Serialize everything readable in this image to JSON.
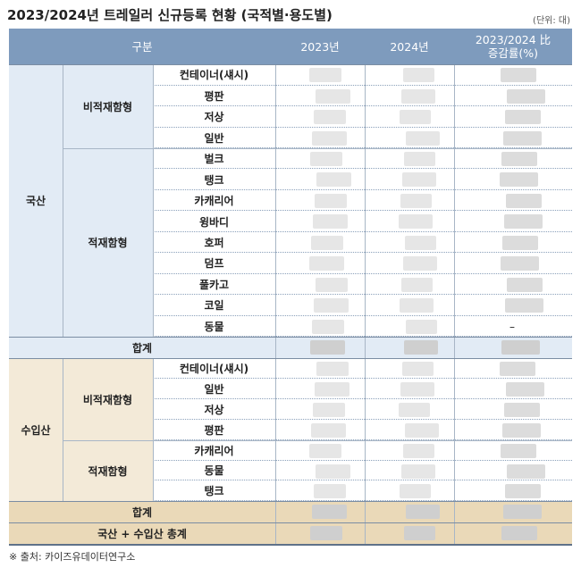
{
  "title": "2023/2024년 트레일러 신규등록 현황 (국적별·용도별)",
  "unit": "(단위: 대)",
  "header": {
    "category": "구분",
    "col_2023": "2023년",
    "col_2024": "2024년",
    "col_change_line1": "2023/2024 比",
    "col_change_line2": "증감률(%)"
  },
  "domestic": {
    "label": "국산",
    "group_nonloading": "비적재함형",
    "group_loading": "적재함형",
    "items_nonloading": [
      "컨테이너(섀시)",
      "평판",
      "저상",
      "일반"
    ],
    "items_loading": [
      "벌크",
      "탱크",
      "카캐리어",
      "윙바디",
      "호퍼",
      "덤프",
      "풀카고",
      "코일",
      "동물"
    ],
    "dash_value": "–",
    "subtotal": "합계"
  },
  "imported": {
    "label": "수입산",
    "group_nonloading": "비적재함형",
    "group_loading": "적재함형",
    "items_nonloading": [
      "컨테이너(섀시)",
      "일반",
      "저상",
      "평판"
    ],
    "items_loading": [
      "카캐리어",
      "동물",
      "탱크"
    ],
    "subtotal": "합계"
  },
  "grand_total": "국산 + 수입산 총계",
  "source": "※ 출처: 카이즈유데이터연구소",
  "colors": {
    "header_bg": "#7e9bbd",
    "domestic_bg": "#e2ebf5",
    "imported_bg": "#f3ead8",
    "imported_total_bg": "#ead9b8"
  }
}
